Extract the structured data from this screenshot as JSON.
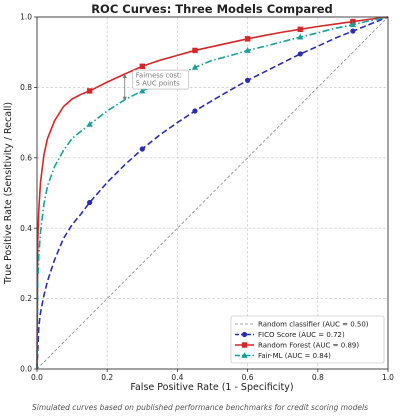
{
  "caption": "Simulated curves based on published performance benchmarks for credit scoring models",
  "chart_data": {
    "type": "line",
    "title": "ROC Curves: Three Models Compared",
    "xlabel": "False Positive Rate  (1 - Specificity)",
    "ylabel": "True Positive Rate  (Sensitivity / Recall)",
    "xlim": [
      0.0,
      1.0
    ],
    "ylim": [
      0.0,
      1.0
    ],
    "x_ticks": [
      "0.0",
      "0.2",
      "0.4",
      "0.6",
      "0.8",
      "1.0"
    ],
    "y_ticks": [
      "0.0",
      "0.2",
      "0.4",
      "0.6",
      "0.8",
      "1.0"
    ],
    "grid": true,
    "legend_position": "bottom-right",
    "annotation": {
      "text_lines": [
        "Fairness cost:",
        "5 AUC points"
      ],
      "arrow_at_fpr": 0.25,
      "arrow_from_tpr": 0.835,
      "arrow_to_tpr": 0.765
    },
    "series": [
      {
        "name": "Random classifier (AUC = 0.50)",
        "style": "diagonal",
        "color": "#888888",
        "x": [
          0.0,
          1.0
        ],
        "y": [
          0.0,
          1.0
        ]
      },
      {
        "name": "FICO Score  (AUC = 0.72)",
        "style": "dashed",
        "marker": "circle",
        "color": "#2b2bb8",
        "x": [
          0.0,
          0.005,
          0.01,
          0.02,
          0.03,
          0.05,
          0.075,
          0.1,
          0.125,
          0.15,
          0.2,
          0.25,
          0.3,
          0.35,
          0.4,
          0.45,
          0.5,
          0.55,
          0.6,
          0.65,
          0.7,
          0.75,
          0.8,
          0.85,
          0.9,
          0.95,
          1.0
        ],
        "y": [
          0.0,
          0.12,
          0.16,
          0.21,
          0.25,
          0.31,
          0.37,
          0.41,
          0.44,
          0.473,
          0.53,
          0.58,
          0.625,
          0.665,
          0.7,
          0.733,
          0.763,
          0.792,
          0.82,
          0.845,
          0.87,
          0.895,
          0.917,
          0.94,
          0.96,
          0.98,
          1.0
        ],
        "marker_x": [
          0.15,
          0.3,
          0.45,
          0.6,
          0.75,
          0.9
        ],
        "marker_y": [
          0.473,
          0.625,
          0.733,
          0.82,
          0.895,
          0.96
        ]
      },
      {
        "name": "Random Forest  (AUC = 0.89)",
        "style": "solid",
        "marker": "square",
        "color": "#d62728",
        "x": [
          0.0,
          0.002,
          0.005,
          0.01,
          0.02,
          0.03,
          0.05,
          0.075,
          0.1,
          0.125,
          0.15,
          0.2,
          0.25,
          0.3,
          0.35,
          0.4,
          0.45,
          0.5,
          0.55,
          0.6,
          0.65,
          0.7,
          0.75,
          0.8,
          0.85,
          0.9,
          0.95,
          1.0
        ],
        "y": [
          0.0,
          0.36,
          0.45,
          0.53,
          0.61,
          0.655,
          0.705,
          0.745,
          0.767,
          0.78,
          0.79,
          0.815,
          0.838,
          0.86,
          0.877,
          0.891,
          0.905,
          0.916,
          0.927,
          0.938,
          0.948,
          0.957,
          0.965,
          0.973,
          0.98,
          0.987,
          0.994,
          1.0
        ],
        "marker_x": [
          0.15,
          0.3,
          0.45,
          0.6,
          0.75,
          0.9
        ],
        "marker_y": [
          0.79,
          0.86,
          0.905,
          0.938,
          0.965,
          0.987
        ]
      },
      {
        "name": "Fair-ML  (AUC = 0.84)",
        "style": "dashdot",
        "marker": "triangle",
        "color": "#17a09a",
        "x": [
          0.0,
          0.002,
          0.005,
          0.01,
          0.02,
          0.03,
          0.05,
          0.075,
          0.1,
          0.125,
          0.15,
          0.2,
          0.25,
          0.3,
          0.35,
          0.4,
          0.45,
          0.5,
          0.55,
          0.6,
          0.65,
          0.7,
          0.75,
          0.8,
          0.85,
          0.9,
          0.95,
          1.0
        ],
        "y": [
          0.0,
          0.25,
          0.32,
          0.39,
          0.47,
          0.52,
          0.575,
          0.62,
          0.655,
          0.675,
          0.695,
          0.733,
          0.765,
          0.79,
          0.812,
          0.835,
          0.857,
          0.877,
          0.89,
          0.905,
          0.917,
          0.93,
          0.943,
          0.955,
          0.968,
          0.978,
          0.99,
          1.0
        ],
        "marker_x": [
          0.15,
          0.3,
          0.45,
          0.6,
          0.75,
          0.9
        ],
        "marker_y": [
          0.695,
          0.79,
          0.857,
          0.905,
          0.943,
          0.978
        ]
      }
    ]
  }
}
